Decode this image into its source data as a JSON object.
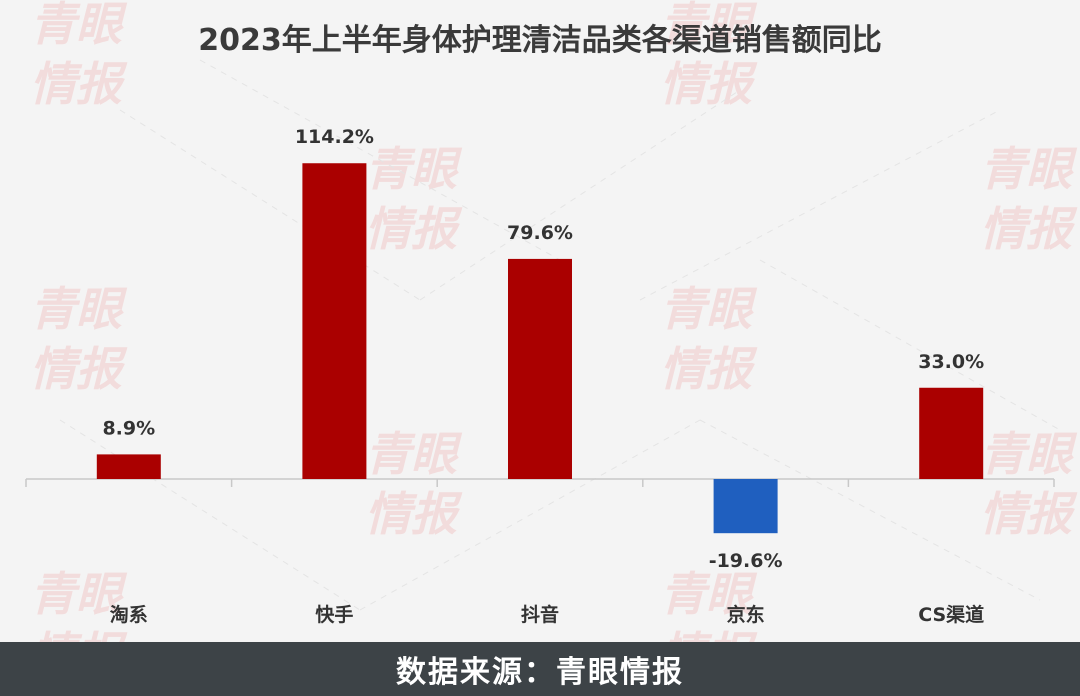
{
  "chart_data": {
    "type": "bar",
    "title": "2023年上半年身体护理清洁品类各渠道销售额同比",
    "categories": [
      "淘系",
      "快手",
      "抖音",
      "京东",
      "CS渠道"
    ],
    "values": [
      8.9,
      114.2,
      79.6,
      -19.6,
      33.0
    ],
    "value_labels": [
      "8.9%",
      "114.2%",
      "79.6%",
      "-19.6%",
      "33.0%"
    ],
    "value_unit": "%",
    "ylim": [
      -36,
      130
    ],
    "grid": false,
    "legend": "none",
    "colors": {
      "positive": "#aa0000",
      "negative": "#1f5fbf"
    }
  },
  "watermark": {
    "line1": "青眼",
    "line2": "情报"
  },
  "footer": {
    "source": "数据来源：青眼情报"
  }
}
